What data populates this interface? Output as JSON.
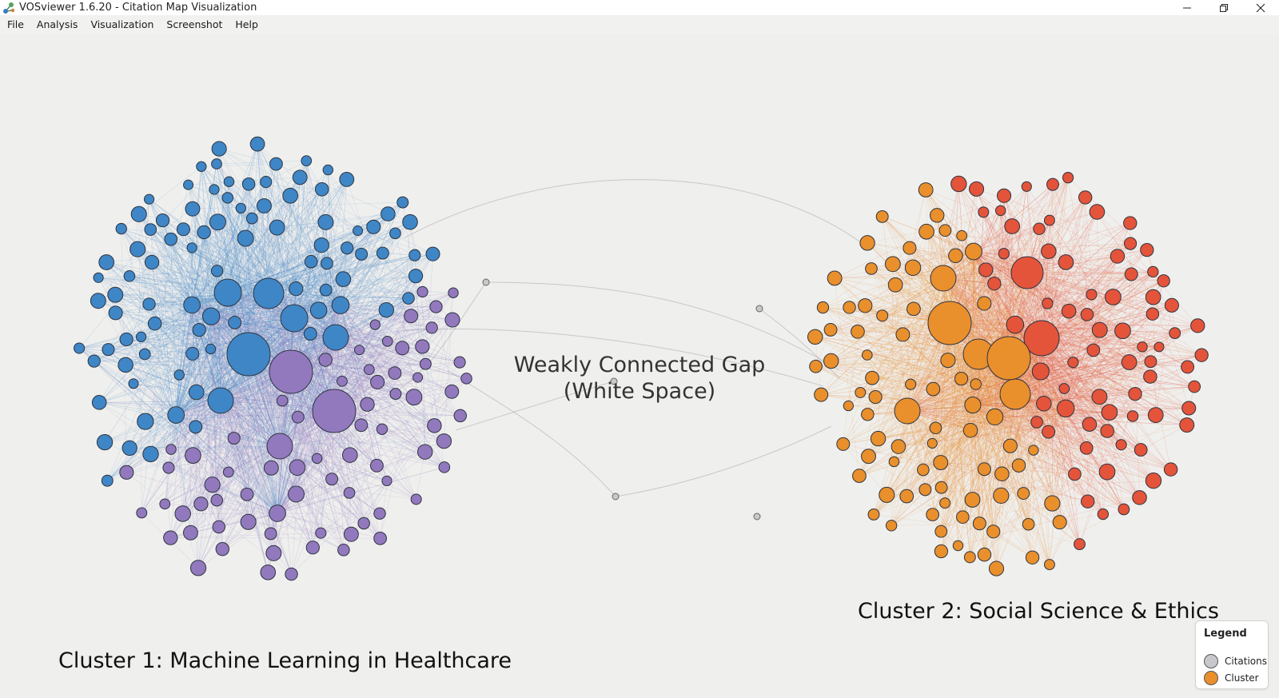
{
  "window": {
    "title": "VOSviewer 1.6.20 - Citation Map Visualization",
    "controls": [
      "minimize-icon",
      "restore-icon",
      "close-icon"
    ]
  },
  "menu": [
    "File",
    "Analysis",
    "Visualization",
    "Screenshot",
    "Help"
  ],
  "map": {
    "gap_label_line1": "Weakly Connected Gap",
    "gap_label_line2": "(White Space)",
    "cluster1_label": "Cluster 1: Machine Learning in Healthcare",
    "cluster2_label": "Cluster 2: Social Science & Ethics",
    "colors": {
      "cluster1_blue": "#3f86c6",
      "cluster1_purple": "#9279bd",
      "cluster2_orange": "#e98f2c",
      "cluster2_red": "#e4543a",
      "bridge_node": "#c9c9c9"
    }
  },
  "legend": {
    "title": "Legend",
    "items": [
      {
        "label": "Citations",
        "color": "#c8c8cc"
      },
      {
        "label": "Cluster",
        "color": "#e98f2c"
      }
    ]
  }
}
